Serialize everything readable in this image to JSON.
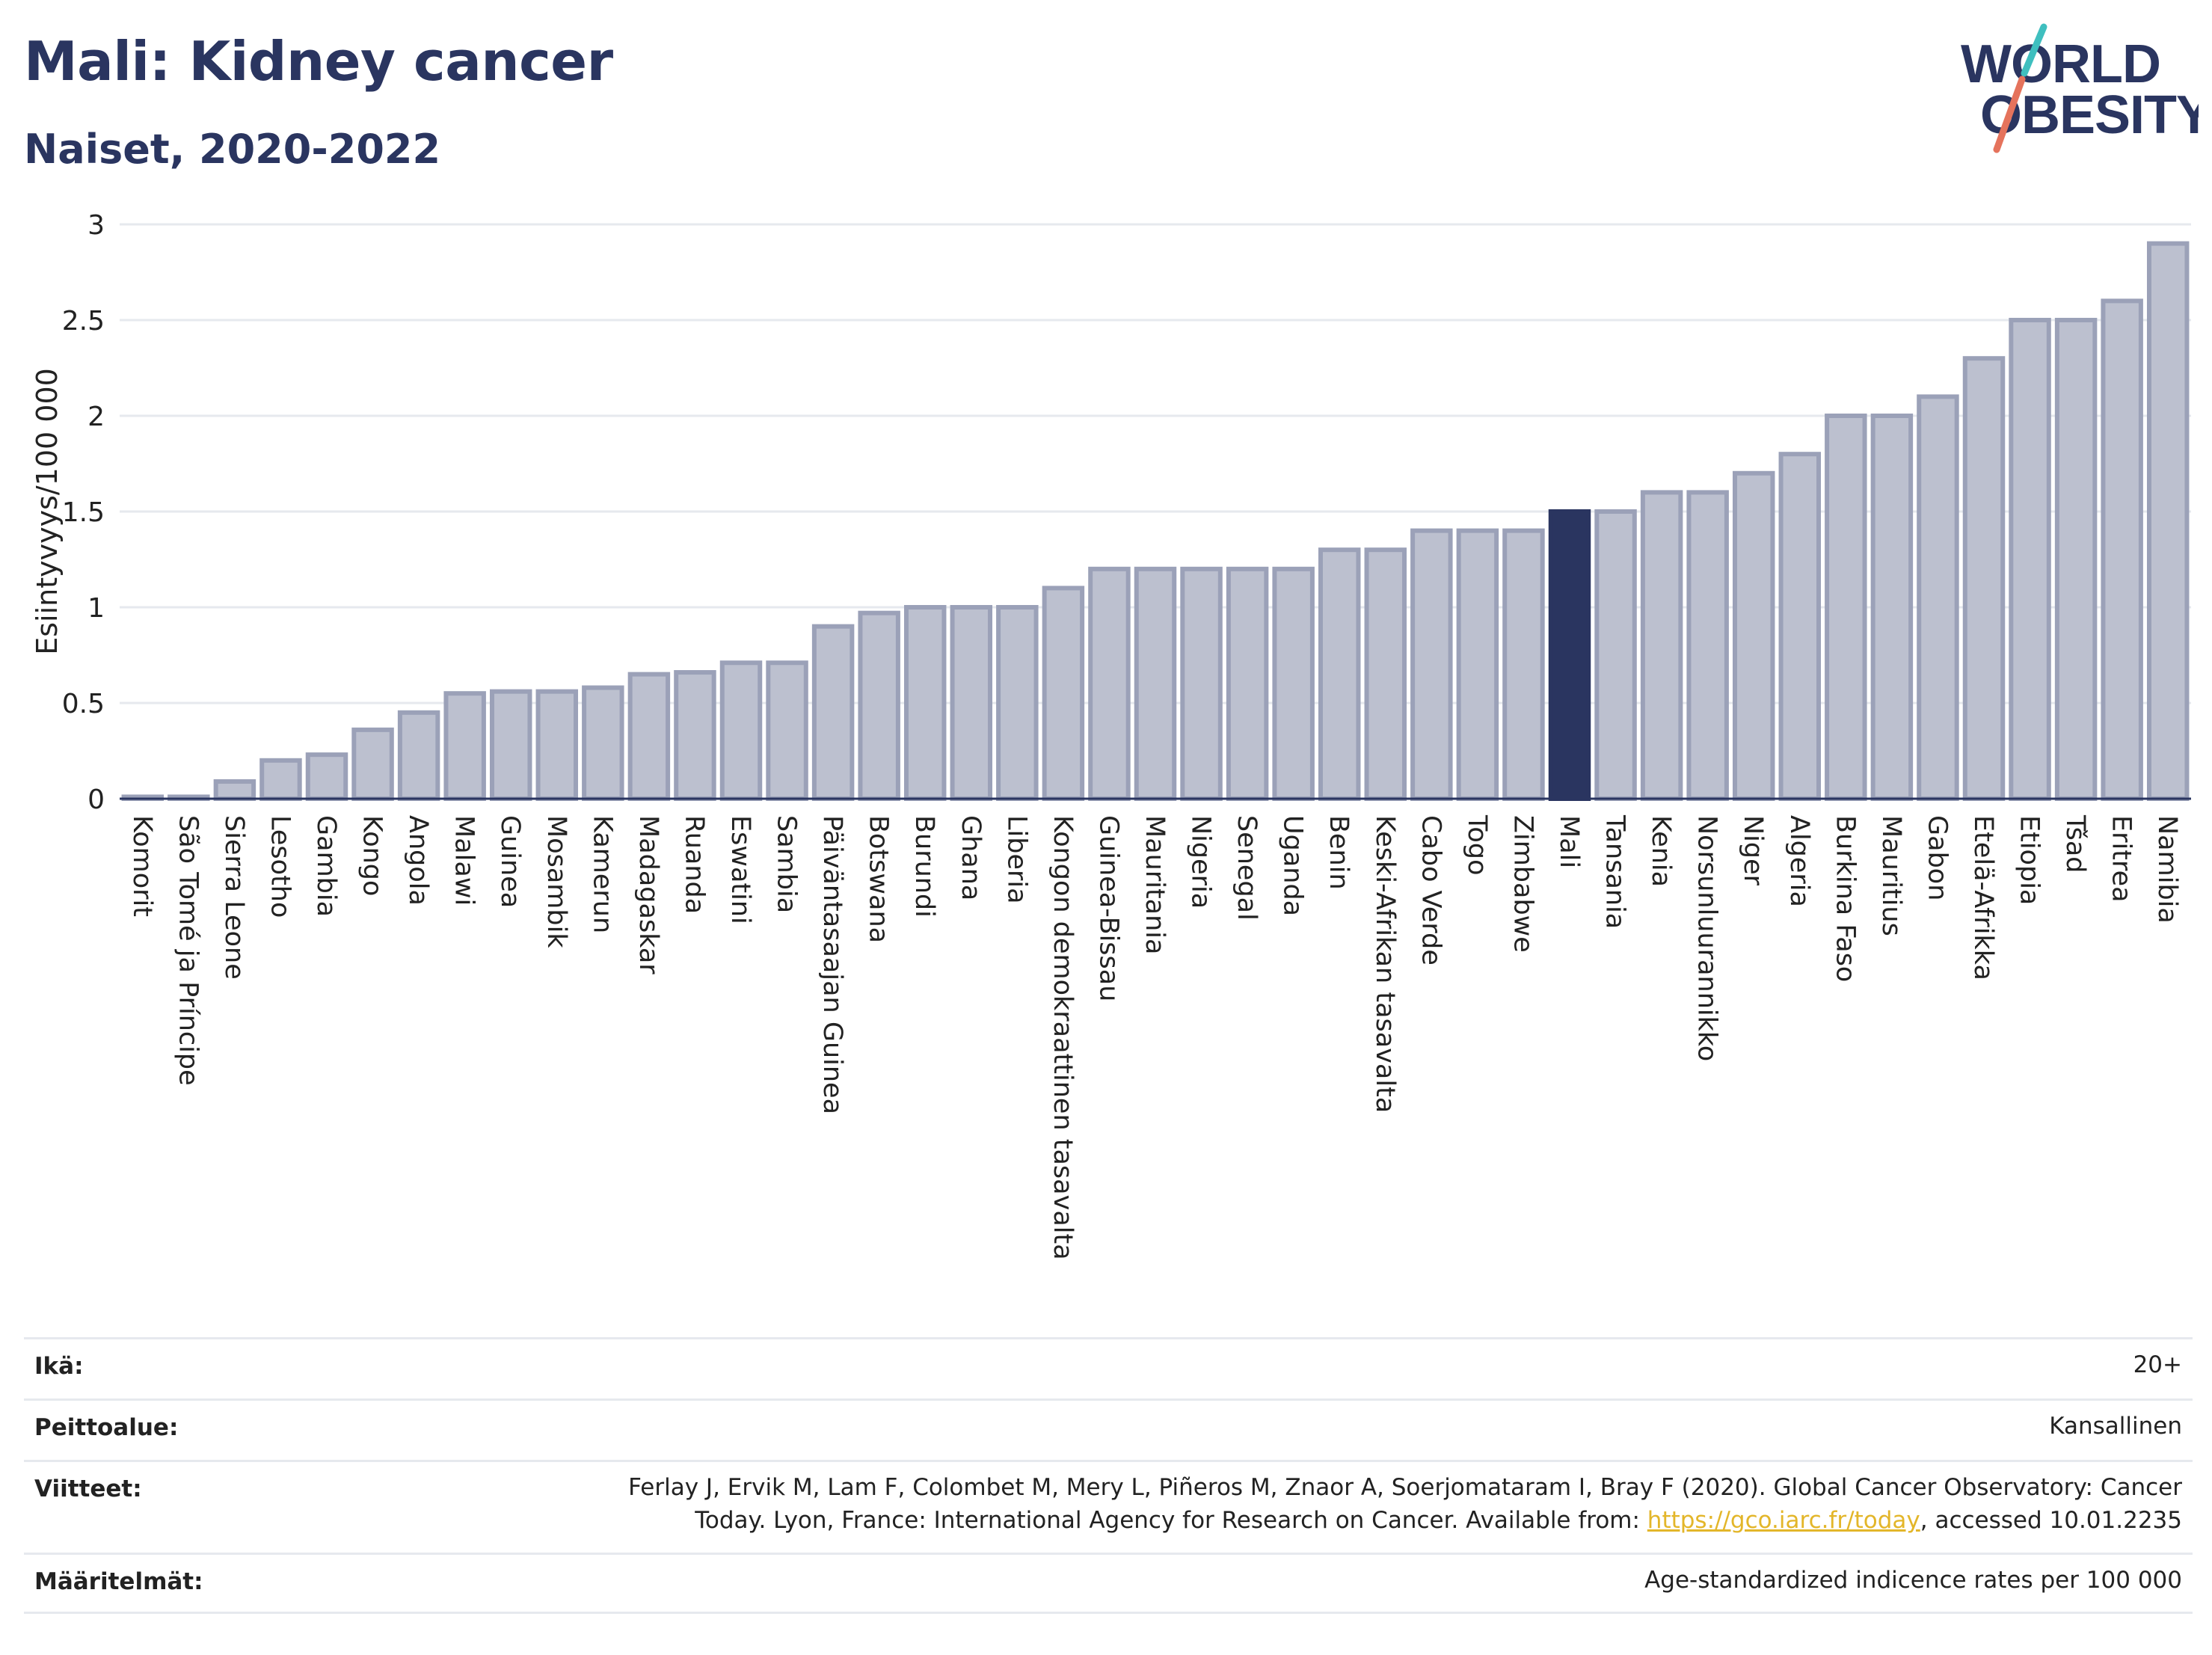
{
  "header": {
    "title": "Mali: Kidney cancer",
    "subtitle": "Naiset, 2020-2022"
  },
  "logo": {
    "line1": "WORLD",
    "line2": "OBESITY",
    "colors": {
      "text": "#2a3560",
      "slash_teal": "#3fbfbf",
      "slash_coral": "#e5735c"
    }
  },
  "chart_data": {
    "type": "bar",
    "ylabel": "Esiintyvyys/100 000",
    "ylim": [
      0,
      3
    ],
    "yticks": [
      "0",
      "0.5",
      "1",
      "1.5",
      "2",
      "2.5",
      "3"
    ],
    "grid": true,
    "highlight": "Mali",
    "colors": {
      "bar": "#bcc0cf",
      "bar_stroke": "#9ba1b8",
      "highlight": "#2a3560"
    },
    "categories": [
      "Komorit",
      "São Tomé ja Príncipe",
      "Sierra Leone",
      "Lesotho",
      "Gambia",
      "Kongo",
      "Angola",
      "Malawi",
      "Guinea",
      "Mosambik",
      "Kamerun",
      "Madagaskar",
      "Ruanda",
      "Eswatini",
      "Sambia",
      "Päiväntasaajan Guinea",
      "Botswana",
      "Burundi",
      "Ghana",
      "Liberia",
      "Kongon demokraattinen tasavalta",
      "Guinea-Bissau",
      "Mauritania",
      "Nigeria",
      "Senegal",
      "Uganda",
      "Benin",
      "Keski-Afrikan tasavalta",
      "Cabo Verde",
      "Togo",
      "Zimbabwe",
      "Mali",
      "Tansania",
      "Kenia",
      "Norsunluurannikko",
      "Niger",
      "Algeria",
      "Burkina Faso",
      "Mauritius",
      "Gabon",
      "Etelä-Afrikka",
      "Etiopia",
      "Tšad",
      "Eritrea",
      "Namibia"
    ],
    "values": [
      0.01,
      0.01,
      0.09,
      0.2,
      0.23,
      0.36,
      0.45,
      0.55,
      0.56,
      0.56,
      0.58,
      0.65,
      0.66,
      0.71,
      0.71,
      0.9,
      0.97,
      1.0,
      1.0,
      1.0,
      1.1,
      1.2,
      1.2,
      1.2,
      1.2,
      1.2,
      1.3,
      1.3,
      1.4,
      1.4,
      1.4,
      1.5,
      1.5,
      1.6,
      1.6,
      1.7,
      1.8,
      2.0,
      2.0,
      2.1,
      2.3,
      2.5,
      2.5,
      2.6,
      2.9
    ]
  },
  "meta": [
    {
      "label": "Ikä:",
      "value": "20+"
    },
    {
      "label": "Peittoalue:",
      "value": "Kansallinen"
    },
    {
      "label": "Viitteet:",
      "value_parts": [
        "Ferlay J, Ervik M, Lam F, Colombet M, Mery L, Piñeros M, Znaor A, Soerjomataram I, Bray F (2020). Global Cancer Observatory: Cancer",
        "Today. Lyon, France: International Agency for Research on Cancer. Available from: ",
        "https://gco.iarc.fr/today",
        ", accessed 10.01.2235"
      ]
    },
    {
      "label": "Määritelmät:",
      "value": "Age-standardized indicence rates per 100 000"
    }
  ]
}
